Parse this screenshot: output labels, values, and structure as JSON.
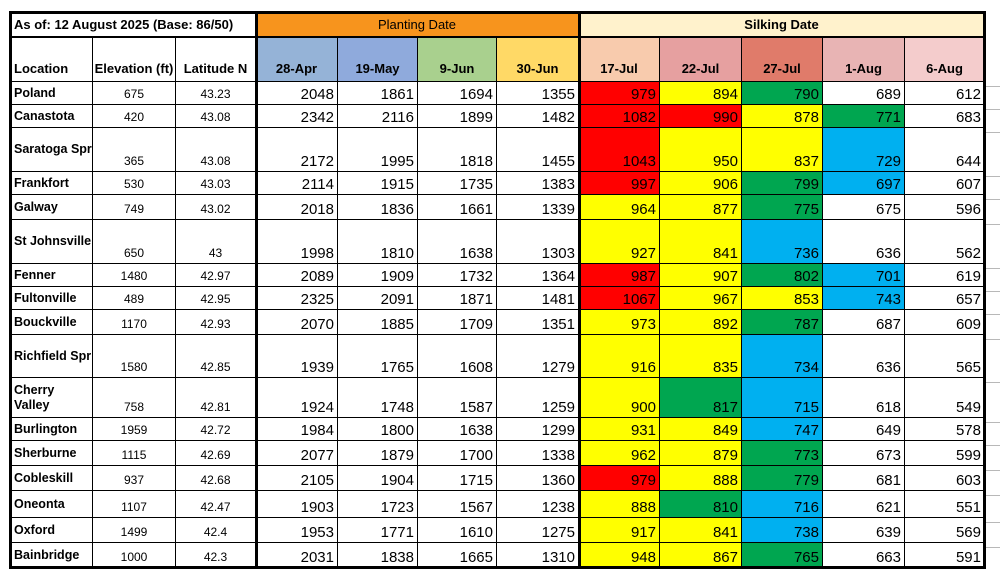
{
  "title": "As of: 12 August 2025 (Base: 86/50)",
  "group_headers": {
    "planting": "Planting Date",
    "silking": "Silking Date"
  },
  "columns": [
    "Location",
    "Elevation (ft)",
    "Latitude N",
    "28-Apr",
    "19-May",
    "9-Jun",
    "30-Jun",
    "17-Jul",
    "22-Jul",
    "27-Jul",
    "1-Aug",
    "6-Aug"
  ],
  "colors": {
    "red": "#ff0000",
    "yellow": "#ffff00",
    "green": "#00a650",
    "blue": "#00b0f0",
    "white": "#ffffff",
    "planting_header": "#f7941d",
    "silking_header": "#fff2cc",
    "col_28apr": "#95b3d7",
    "col_19may": "#8faadc",
    "col_9jun": "#a9d08e",
    "col_30jun": "#ffd966",
    "col_17jul": "#f8cbad",
    "col_22jul": "#e6a0a0",
    "col_27jul": "#e07b6a",
    "col_1aug": "#e8b4b4",
    "col_6aug": "#f4cccc"
  },
  "chart_data": {
    "type": "table",
    "title": "As of: 12 August 2025 (Base: 86/50)",
    "rows": [
      {
        "location": "Poland",
        "elevation": "675",
        "latitude": "43.23",
        "planting": [
          "2048",
          "1861",
          "1694",
          "1355"
        ],
        "silking": [
          "979",
          "894",
          "790",
          "689",
          "612"
        ],
        "silking_colors": [
          "red",
          "yellow",
          "green",
          "white",
          "white"
        ]
      },
      {
        "location": "Canastota",
        "elevation": "420",
        "latitude": "43.08",
        "planting": [
          "2342",
          "2116",
          "1899",
          "1482"
        ],
        "silking": [
          "1082",
          "990",
          "878",
          "771",
          "683"
        ],
        "silking_colors": [
          "red",
          "red",
          "yellow",
          "green",
          "white"
        ]
      },
      {
        "location": "Saratoga Spr",
        "elevation": "365",
        "latitude": "43.08",
        "planting": [
          "2172",
          "1995",
          "1818",
          "1455"
        ],
        "silking": [
          "1043",
          "950",
          "837",
          "729",
          "644"
        ],
        "silking_colors": [
          "red",
          "yellow",
          "yellow",
          "blue",
          "white"
        ]
      },
      {
        "location": "Frankfort",
        "elevation": "530",
        "latitude": "43.03",
        "planting": [
          "2114",
          "1915",
          "1735",
          "1383"
        ],
        "silking": [
          "997",
          "906",
          "799",
          "697",
          "607"
        ],
        "silking_colors": [
          "red",
          "yellow",
          "green",
          "blue",
          "white"
        ]
      },
      {
        "location": "Galway",
        "elevation": "749",
        "latitude": "43.02",
        "planting": [
          "2018",
          "1836",
          "1661",
          "1339"
        ],
        "silking": [
          "964",
          "877",
          "775",
          "675",
          "596"
        ],
        "silking_colors": [
          "yellow",
          "yellow",
          "green",
          "white",
          "white"
        ]
      },
      {
        "location": "St Johnsville",
        "elevation": "650",
        "latitude": "43",
        "planting": [
          "1998",
          "1810",
          "1638",
          "1303"
        ],
        "silking": [
          "927",
          "841",
          "736",
          "636",
          "562"
        ],
        "silking_colors": [
          "yellow",
          "yellow",
          "blue",
          "white",
          "white"
        ]
      },
      {
        "location": "Fenner",
        "elevation": "1480",
        "latitude": "42.97",
        "planting": [
          "2089",
          "1909",
          "1732",
          "1364"
        ],
        "silking": [
          "987",
          "907",
          "802",
          "701",
          "619"
        ],
        "silking_colors": [
          "red",
          "yellow",
          "green",
          "blue",
          "white"
        ]
      },
      {
        "location": "Fultonville",
        "elevation": "489",
        "latitude": "42.95",
        "planting": [
          "2325",
          "2091",
          "1871",
          "1481"
        ],
        "silking": [
          "1067",
          "967",
          "853",
          "743",
          "657"
        ],
        "silking_colors": [
          "red",
          "yellow",
          "yellow",
          "blue",
          "white"
        ]
      },
      {
        "location": "Bouckville",
        "elevation": "1170",
        "latitude": "42.93",
        "planting": [
          "2070",
          "1885",
          "1709",
          "1351"
        ],
        "silking": [
          "973",
          "892",
          "787",
          "687",
          "609"
        ],
        "silking_colors": [
          "yellow",
          "yellow",
          "green",
          "white",
          "white"
        ]
      },
      {
        "location": "Richfield Spr",
        "elevation": "1580",
        "latitude": "42.85",
        "planting": [
          "1939",
          "1765",
          "1608",
          "1279"
        ],
        "silking": [
          "916",
          "835",
          "734",
          "636",
          "565"
        ],
        "silking_colors": [
          "yellow",
          "yellow",
          "blue",
          "white",
          "white"
        ]
      },
      {
        "location": "Cherry Valley",
        "elevation": "758",
        "latitude": "42.81",
        "planting": [
          "1924",
          "1748",
          "1587",
          "1259"
        ],
        "silking": [
          "900",
          "817",
          "715",
          "618",
          "549"
        ],
        "silking_colors": [
          "yellow",
          "green",
          "blue",
          "white",
          "white"
        ]
      },
      {
        "location": "Burlington",
        "elevation": "1959",
        "latitude": "42.72",
        "planting": [
          "1984",
          "1800",
          "1638",
          "1299"
        ],
        "silking": [
          "931",
          "849",
          "747",
          "649",
          "578"
        ],
        "silking_colors": [
          "yellow",
          "yellow",
          "blue",
          "white",
          "white"
        ]
      },
      {
        "location": "Sherburne",
        "elevation": "1115",
        "latitude": "42.69",
        "planting": [
          "2077",
          "1879",
          "1700",
          "1338"
        ],
        "silking": [
          "962",
          "879",
          "773",
          "673",
          "599"
        ],
        "silking_colors": [
          "yellow",
          "yellow",
          "green",
          "white",
          "white"
        ]
      },
      {
        "location": "Cobleskill",
        "elevation": "937",
        "latitude": "42.68",
        "planting": [
          "2105",
          "1904",
          "1715",
          "1360"
        ],
        "silking": [
          "979",
          "888",
          "779",
          "681",
          "603"
        ],
        "silking_colors": [
          "red",
          "yellow",
          "green",
          "white",
          "white"
        ]
      },
      {
        "location": "Oneonta",
        "elevation": "1107",
        "latitude": "42.47",
        "planting": [
          "1903",
          "1723",
          "1567",
          "1238"
        ],
        "silking": [
          "888",
          "810",
          "716",
          "621",
          "551"
        ],
        "silking_colors": [
          "yellow",
          "green",
          "blue",
          "white",
          "white"
        ]
      },
      {
        "location": "Oxford",
        "elevation": "1499",
        "latitude": "42.4",
        "planting": [
          "1953",
          "1771",
          "1610",
          "1275"
        ],
        "silking": [
          "917",
          "841",
          "738",
          "639",
          "569"
        ],
        "silking_colors": [
          "yellow",
          "yellow",
          "blue",
          "white",
          "white"
        ]
      },
      {
        "location": "Bainbridge",
        "elevation": "1000",
        "latitude": "42.3",
        "planting": [
          "2031",
          "1838",
          "1665",
          "1310"
        ],
        "silking": [
          "948",
          "867",
          "765",
          "663",
          "591"
        ],
        "silking_colors": [
          "yellow",
          "yellow",
          "green",
          "white",
          "white"
        ]
      }
    ]
  }
}
